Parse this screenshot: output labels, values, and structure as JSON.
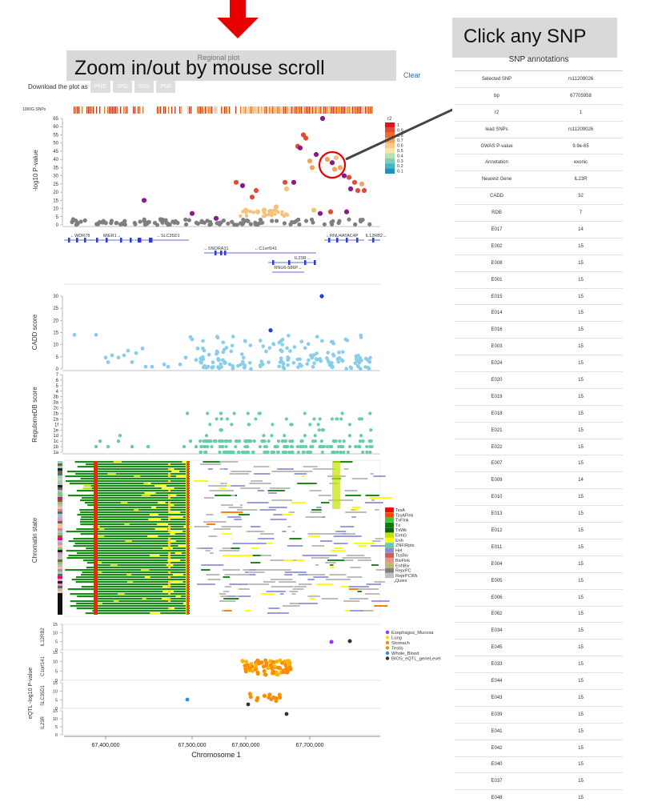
{
  "header": {
    "regional_plot_title": "Regional plot",
    "zoom_hint": "Zoom in/out by mouse scroll",
    "download_label": "Download the plot as",
    "download_buttons": [
      "PNG",
      "JPG",
      "SVG",
      "PDF"
    ],
    "clear_label": "Clear"
  },
  "snp_hint": "Click any SNP",
  "annotations": {
    "title": "SNP annotations",
    "rows": [
      [
        "Selected SNP",
        "rs11209026"
      ],
      [
        "bp",
        "67705958"
      ],
      [
        "r2",
        "1"
      ],
      [
        "lead SNPs",
        "rs11209026"
      ],
      [
        "GWAS P-value",
        "9.9e-65"
      ],
      [
        "Annotation",
        "exonic"
      ],
      [
        "Nearest Gene",
        "IL23R"
      ],
      [
        "CADD",
        "32"
      ],
      [
        "RDB",
        "7"
      ],
      [
        "E017",
        "14"
      ],
      [
        "E002",
        "15"
      ],
      [
        "E008",
        "15"
      ],
      [
        "E001",
        "15"
      ],
      [
        "E015",
        "15"
      ],
      [
        "E014",
        "15"
      ],
      [
        "E016",
        "15"
      ],
      [
        "E003",
        "15"
      ],
      [
        "E024",
        "15"
      ],
      [
        "E020",
        "15"
      ],
      [
        "E019",
        "15"
      ],
      [
        "E018",
        "15"
      ],
      [
        "E021",
        "15"
      ],
      [
        "E022",
        "15"
      ],
      [
        "E007",
        "15"
      ],
      [
        "E009",
        "14"
      ],
      [
        "E010",
        "15"
      ],
      [
        "E013",
        "15"
      ],
      [
        "E012",
        "15"
      ],
      [
        "E011",
        "15"
      ],
      [
        "E004",
        "15"
      ],
      [
        "E005",
        "15"
      ],
      [
        "E006",
        "15"
      ],
      [
        "E062",
        "15"
      ],
      [
        "E034",
        "15"
      ],
      [
        "E045",
        "15"
      ],
      [
        "E033",
        "15"
      ],
      [
        "E044",
        "15"
      ],
      [
        "E043",
        "15"
      ],
      [
        "E039",
        "15"
      ],
      [
        "E041",
        "15"
      ],
      [
        "E042",
        "15"
      ],
      [
        "E040",
        "15"
      ],
      [
        "E037",
        "15"
      ],
      [
        "E048",
        "15"
      ]
    ]
  },
  "plots": {
    "snps_track_label": "1000G SNPs",
    "gwas": {
      "ylabel": "-log10 P-value",
      "ticks": [
        "0",
        "5",
        "10",
        "15",
        "20",
        "25",
        "30",
        "35",
        "40",
        "45",
        "50",
        "55",
        "60",
        "65"
      ],
      "legend_title": "r2",
      "legend_labels": [
        "1",
        "0.9",
        "0.8",
        "0.7",
        "0.6",
        "0.5",
        "0.4",
        "0.3",
        "0.2",
        "0.1"
      ],
      "legend_colors": [
        "#d7191c",
        "#e34a33",
        "#ef6c2b",
        "#f4a25a",
        "#f7c98a",
        "#f2e6a8",
        "#b8e0b0",
        "#7fcdbb",
        "#41b6c4",
        "#1d91c0"
      ],
      "genes": [
        "←WDR78",
        "MIER1→",
        "←SLC35D1",
        "←C1orf141",
        "IL23R→",
        "←SNORA31",
        "RNU6-586P→",
        "←RNU4ATAC4P",
        "IL12RB2→"
      ]
    },
    "cadd": {
      "ylabel": "CADD score",
      "ticks": [
        "0",
        "5",
        "10",
        "15",
        "20",
        "25",
        "30"
      ]
    },
    "rdb": {
      "ylabel": "RegulomeDB score",
      "ticks": [
        "1a",
        "1b",
        "1c",
        "1d",
        "1e",
        "1f",
        "2a",
        "2b",
        "2c",
        "3a",
        "3b",
        "4",
        "5",
        "6",
        "7"
      ]
    },
    "chromatin": {
      "ylabel": "Chromatin state",
      "legend": [
        {
          "label": "TssA",
          "color": "#ff0000"
        },
        {
          "label": "TssAFlnk",
          "color": "#ff4500"
        },
        {
          "label": "TxFlnk",
          "color": "#32cd32"
        },
        {
          "label": "Tx",
          "color": "#008000"
        },
        {
          "label": "TxWk",
          "color": "#006400"
        },
        {
          "label": "EnhG",
          "color": "#c2e105"
        },
        {
          "label": "Enh",
          "color": "#ffff00"
        },
        {
          "label": "ZNF/Rpts",
          "color": "#66cdaa"
        },
        {
          "label": "Het",
          "color": "#8a91d0"
        },
        {
          "label": "TssBiv",
          "color": "#cd5c5c"
        },
        {
          "label": "BivFlnk",
          "color": "#e9967a"
        },
        {
          "label": "EnhBiv",
          "color": "#bdb76b"
        },
        {
          "label": "ReprPC",
          "color": "#808080"
        },
        {
          "label": "ReprPCWk",
          "color": "#c0c0c0"
        },
        {
          "label": "Quies",
          "color": "#ffffff"
        }
      ]
    },
    "eqtl": {
      "ylabel": "eQTL -log10 P-value",
      "genes": [
        "IL12RB2",
        "C1orf141",
        "SLC35D1",
        "IL23R"
      ],
      "ticks_top": [
        "0",
        "5",
        "10",
        "15"
      ],
      "legend": [
        {
          "label": "Esophagus_Mucosa",
          "color": "#9b30ff"
        },
        {
          "label": "Lung",
          "color": "#ffd700"
        },
        {
          "label": "Stomach",
          "color": "#ff8c00"
        },
        {
          "label": "Testis",
          "color": "#e69500"
        },
        {
          "label": "Whole_Blood",
          "color": "#1e90ff"
        },
        {
          "label": "BIOS_eQTL_geneLevel",
          "color": "#333333"
        }
      ]
    },
    "xaxis": {
      "ticks": [
        "67,400,000",
        "67,500,000",
        "67,600,000",
        "67,700,000"
      ],
      "xlabel": "Chromosome 1"
    }
  }
}
